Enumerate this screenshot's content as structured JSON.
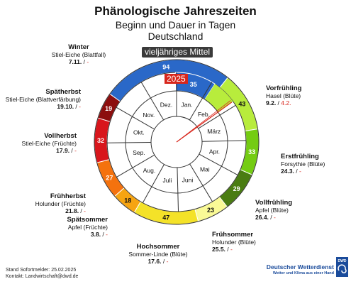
{
  "title": "Phänologische Jahreszeiten",
  "subtitle": "Beginn und Dauer in Tagen",
  "region": "Deutschland",
  "ring_outer_label": "vieljähriges Mittel",
  "ring_inner_label": "2025",
  "months": [
    "Jan.",
    "Feb.",
    "März",
    "Apr.",
    "Mai",
    "Juni",
    "Juli",
    "Aug.",
    "Sep.",
    "Okt.",
    "Nov.",
    "Dez."
  ],
  "chart_data": {
    "type": "pie",
    "title": "Phänologische Jahreszeiten",
    "seasons": [
      {
        "name": "Vorfrühling",
        "indicator": "Hasel (Blüte)",
        "start_mean": "9.2.",
        "start_2025": "4.2.",
        "mean_days": 43,
        "color": "#b8ec3c"
      },
      {
        "name": "Erstfrühling",
        "indicator": "Forsythie (Blüte)",
        "start_mean": "24.3.",
        "start_2025": "-",
        "mean_days": 33,
        "color": "#74cc12"
      },
      {
        "name": "Vollfrühling",
        "indicator": "Apfel (Blüte)",
        "start_mean": "26.4.",
        "start_2025": "-",
        "mean_days": 29,
        "color": "#4a7c12"
      },
      {
        "name": "Frühsommer",
        "indicator": "Holunder (Blüte)",
        "start_mean": "25.5.",
        "start_2025": "-",
        "mean_days": 23,
        "color": "#fafa96"
      },
      {
        "name": "Hochsommer",
        "indicator": "Sommer-Linde (Blüte)",
        "start_mean": "17.6.",
        "start_2025": "-",
        "mean_days": 47,
        "color": "#f4e228"
      },
      {
        "name": "Spätsommer",
        "indicator": "Apfel (Früchte)",
        "start_mean": "3.8.",
        "start_2025": "-",
        "mean_days": 18,
        "color": "#f6a412"
      },
      {
        "name": "Frühherbst",
        "indicator": "Holunder (Früchte)",
        "start_mean": "21.8.",
        "start_2025": "-",
        "mean_days": 27,
        "color": "#f4720e"
      },
      {
        "name": "Vollherbst",
        "indicator": "Stiel-Eiche (Früchte)",
        "start_mean": "17.9.",
        "start_2025": "-",
        "mean_days": 32,
        "color": "#d8161c"
      },
      {
        "name": "Spätherbst",
        "indicator": "Stiel-Eiche (Blattverfärbung)",
        "start_mean": "19.10.",
        "start_2025": "-",
        "mean_days": 19,
        "color": "#8c0e0e"
      },
      {
        "name": "Winter",
        "indicator": "Stiel-Eiche (Blattfall)",
        "start_mean": "7.11.",
        "start_2025": "-",
        "mean_days": 94,
        "color": "#2a68c8"
      }
    ],
    "current_2025": {
      "season": "Vorfrühling",
      "days": 35,
      "color": "#2a68c8",
      "start": "4.2.",
      "stand": "25.02.2025"
    }
  },
  "footer": {
    "line1": "Stand Sofortmelder: 25.02.2025",
    "line2": "Kontakt: Landwirtschaft@dwd.de"
  },
  "brand": {
    "name": "Deutscher Wetterdienst",
    "tagline": "Wetter und Klima aus einer Hand",
    "logo_text": "DWD"
  }
}
